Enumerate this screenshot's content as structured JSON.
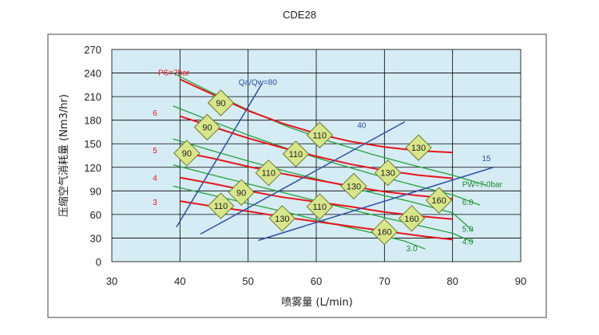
{
  "chart_data": {
    "type": "line",
    "title": "CDE28",
    "xlabel": "喷雾量 (L/min)",
    "ylabel": "压缩空气消耗量 (Nm3/hr)",
    "xlim": [
      30,
      90
    ],
    "ylim": [
      0,
      270
    ],
    "xticks": [
      "30",
      "40",
      "50",
      "60",
      "70",
      "80",
      "90"
    ],
    "yticks": [
      "0",
      "30",
      "60",
      "90",
      "120",
      "150",
      "180",
      "210",
      "240",
      "270"
    ],
    "grid": true,
    "colors": {
      "plot_bg": "#d6ecf4",
      "grid": "#000000",
      "ps_curve": "#e8141c",
      "ps_label": "#e8141c",
      "pw_curve": "#23a33a",
      "pw_label": "#1f8a32",
      "ratio_line": "#2c4fa6",
      "ratio_label": "#2c4fa6",
      "diamond_fill": "#d8e68a",
      "diamond_stroke": "#6d7a2c"
    },
    "ps_curves": [
      {
        "label": "PS=7bar",
        "points": [
          [
            40,
            232
          ],
          [
            45,
            212
          ],
          [
            50,
            192
          ],
          [
            55,
            176
          ],
          [
            60,
            163
          ],
          [
            65,
            153
          ],
          [
            70,
            146
          ],
          [
            75,
            141
          ],
          [
            80,
            139
          ]
        ]
      },
      {
        "label": "6",
        "points": [
          [
            40,
            185
          ],
          [
            45,
            171
          ],
          [
            50,
            157
          ],
          [
            55,
            145
          ],
          [
            60,
            134
          ],
          [
            65,
            124
          ],
          [
            70,
            116
          ],
          [
            75,
            110
          ],
          [
            80,
            106
          ]
        ]
      },
      {
        "label": "5",
        "points": [
          [
            40,
            140
          ],
          [
            45,
            131
          ],
          [
            50,
            121
          ],
          [
            55,
            112
          ],
          [
            60,
            104
          ],
          [
            65,
            96
          ],
          [
            70,
            89
          ],
          [
            75,
            84
          ],
          [
            80,
            80
          ]
        ]
      },
      {
        "label": "4",
        "points": [
          [
            40,
            107
          ],
          [
            45,
            99
          ],
          [
            50,
            90
          ],
          [
            55,
            82
          ],
          [
            60,
            76
          ],
          [
            65,
            70
          ],
          [
            70,
            63
          ],
          [
            75,
            58
          ],
          [
            80,
            54
          ]
        ]
      },
      {
        "label": "3",
        "points": [
          [
            40,
            77
          ],
          [
            45,
            70
          ],
          [
            50,
            64
          ],
          [
            55,
            57
          ],
          [
            60,
            51
          ],
          [
            65,
            45
          ],
          [
            70,
            39
          ],
          [
            75,
            33
          ],
          [
            80,
            28
          ]
        ]
      }
    ],
    "pw_curves": [
      {
        "label": "PW=7.0bar",
        "points": [
          [
            39,
            240
          ],
          [
            44,
            218
          ],
          [
            50,
            193
          ],
          [
            56,
            171
          ],
          [
            62,
            153
          ],
          [
            68,
            137
          ],
          [
            74,
            123
          ],
          [
            80,
            110
          ],
          [
            85,
            97
          ]
        ]
      },
      {
        "label": "6.0",
        "points": [
          [
            39,
            198
          ],
          [
            44,
            181
          ],
          [
            50,
            161
          ],
          [
            56,
            143
          ],
          [
            62,
            127
          ],
          [
            68,
            112
          ],
          [
            74,
            98
          ],
          [
            80,
            85
          ],
          [
            84,
            72
          ]
        ]
      },
      {
        "label": "5.0",
        "points": [
          [
            39,
            156
          ],
          [
            44,
            143
          ],
          [
            50,
            128
          ],
          [
            56,
            114
          ],
          [
            62,
            101
          ],
          [
            68,
            88
          ],
          [
            74,
            76
          ],
          [
            80,
            62
          ],
          [
            83,
            39
          ]
        ]
      },
      {
        "label": "4.0",
        "points": [
          [
            39,
            123
          ],
          [
            44,
            112
          ],
          [
            50,
            99
          ],
          [
            56,
            86
          ],
          [
            62,
            73
          ],
          [
            68,
            60
          ],
          [
            74,
            48
          ],
          [
            80,
            36
          ],
          [
            83,
            25
          ]
        ]
      },
      {
        "label": "3.0",
        "points": [
          [
            39,
            96
          ],
          [
            44,
            86
          ],
          [
            50,
            74
          ],
          [
            56,
            62
          ],
          [
            62,
            49
          ],
          [
            68,
            37
          ],
          [
            73,
            26
          ],
          [
            76,
            16
          ]
        ]
      }
    ],
    "ratio_lines": [
      {
        "label": "Qa/Qw=80",
        "from": [
          39.5,
          44
        ],
        "to": [
          52,
          226
        ]
      },
      {
        "label": "40",
        "from": [
          43,
          35
        ],
        "to": [
          73,
          178
        ]
      },
      {
        "label": "15",
        "from": [
          51.5,
          27
        ],
        "to": [
          86,
          120
        ]
      }
    ],
    "diamonds": [
      {
        "label": "90",
        "x": 46,
        "y": 202
      },
      {
        "label": "90",
        "x": 44,
        "y": 171
      },
      {
        "label": "90",
        "x": 41,
        "y": 138
      },
      {
        "label": "90",
        "x": 49,
        "y": 88
      },
      {
        "label": "110",
        "x": 46,
        "y": 71
      },
      {
        "label": "110",
        "x": 53,
        "y": 113
      },
      {
        "label": "110",
        "x": 57,
        "y": 137
      },
      {
        "label": "110",
        "x": 60.5,
        "y": 161
      },
      {
        "label": "110",
        "x": 60.5,
        "y": 70
      },
      {
        "label": "130",
        "x": 55,
        "y": 55
      },
      {
        "label": "130",
        "x": 65.5,
        "y": 96
      },
      {
        "label": "130",
        "x": 70.5,
        "y": 113
      },
      {
        "label": "130",
        "x": 75,
        "y": 145
      },
      {
        "label": "160",
        "x": 78,
        "y": 78
      },
      {
        "label": "160",
        "x": 74,
        "y": 55
      },
      {
        "label": "160",
        "x": 70,
        "y": 38
      }
    ]
  }
}
